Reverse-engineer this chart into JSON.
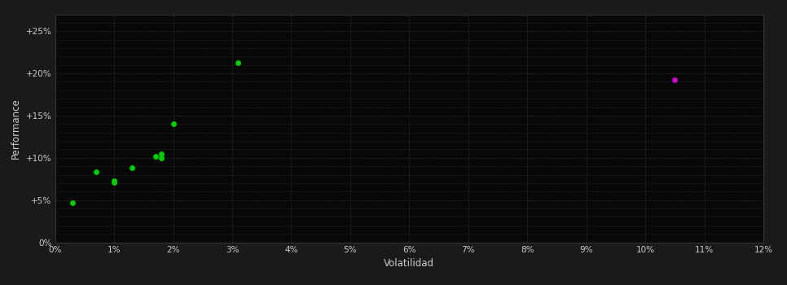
{
  "background_color": "#1a1a1a",
  "plot_bg_color": "#080808",
  "grid_color": "#2a2a2a",
  "xlabel": "Volatilidad",
  "ylabel": "Performance",
  "xlim": [
    0,
    0.12
  ],
  "ylim": [
    0,
    0.27
  ],
  "xticks": [
    0.0,
    0.01,
    0.02,
    0.03,
    0.04,
    0.05,
    0.06,
    0.07,
    0.08,
    0.09,
    0.1,
    0.11,
    0.12
  ],
  "yticks": [
    0.0,
    0.05,
    0.1,
    0.15,
    0.2,
    0.25
  ],
  "ytick_labels": [
    "0%",
    "+5%",
    "+10%",
    "+15%",
    "+20%",
    "+25%"
  ],
  "xtick_labels": [
    "0%",
    "1%",
    "2%",
    "3%",
    "4%",
    "5%",
    "6%",
    "7%",
    "8%",
    "9%",
    "10%",
    "11%",
    "12%"
  ],
  "minor_yticks": [
    0.0,
    0.01,
    0.02,
    0.03,
    0.04,
    0.05,
    0.06,
    0.07,
    0.08,
    0.09,
    0.1,
    0.11,
    0.12,
    0.13,
    0.14,
    0.15,
    0.16,
    0.17,
    0.18,
    0.19,
    0.2,
    0.21,
    0.22,
    0.23,
    0.24,
    0.25,
    0.26,
    0.27
  ],
  "green_points": [
    [
      0.003,
      0.047
    ],
    [
      0.007,
      0.083
    ],
    [
      0.01,
      0.073
    ],
    [
      0.01,
      0.071
    ],
    [
      0.013,
      0.088
    ],
    [
      0.017,
      0.102
    ],
    [
      0.018,
      0.105
    ],
    [
      0.018,
      0.1
    ],
    [
      0.02,
      0.14
    ],
    [
      0.031,
      0.213
    ]
  ],
  "magenta_points": [
    [
      0.105,
      0.192
    ]
  ],
  "green_color": "#00cc00",
  "magenta_color": "#cc00cc",
  "marker_size": 5,
  "tick_color": "#cccccc",
  "tick_fontsize": 7.5,
  "label_fontsize": 8.5,
  "label_color": "#cccccc",
  "spine_color": "#333333"
}
